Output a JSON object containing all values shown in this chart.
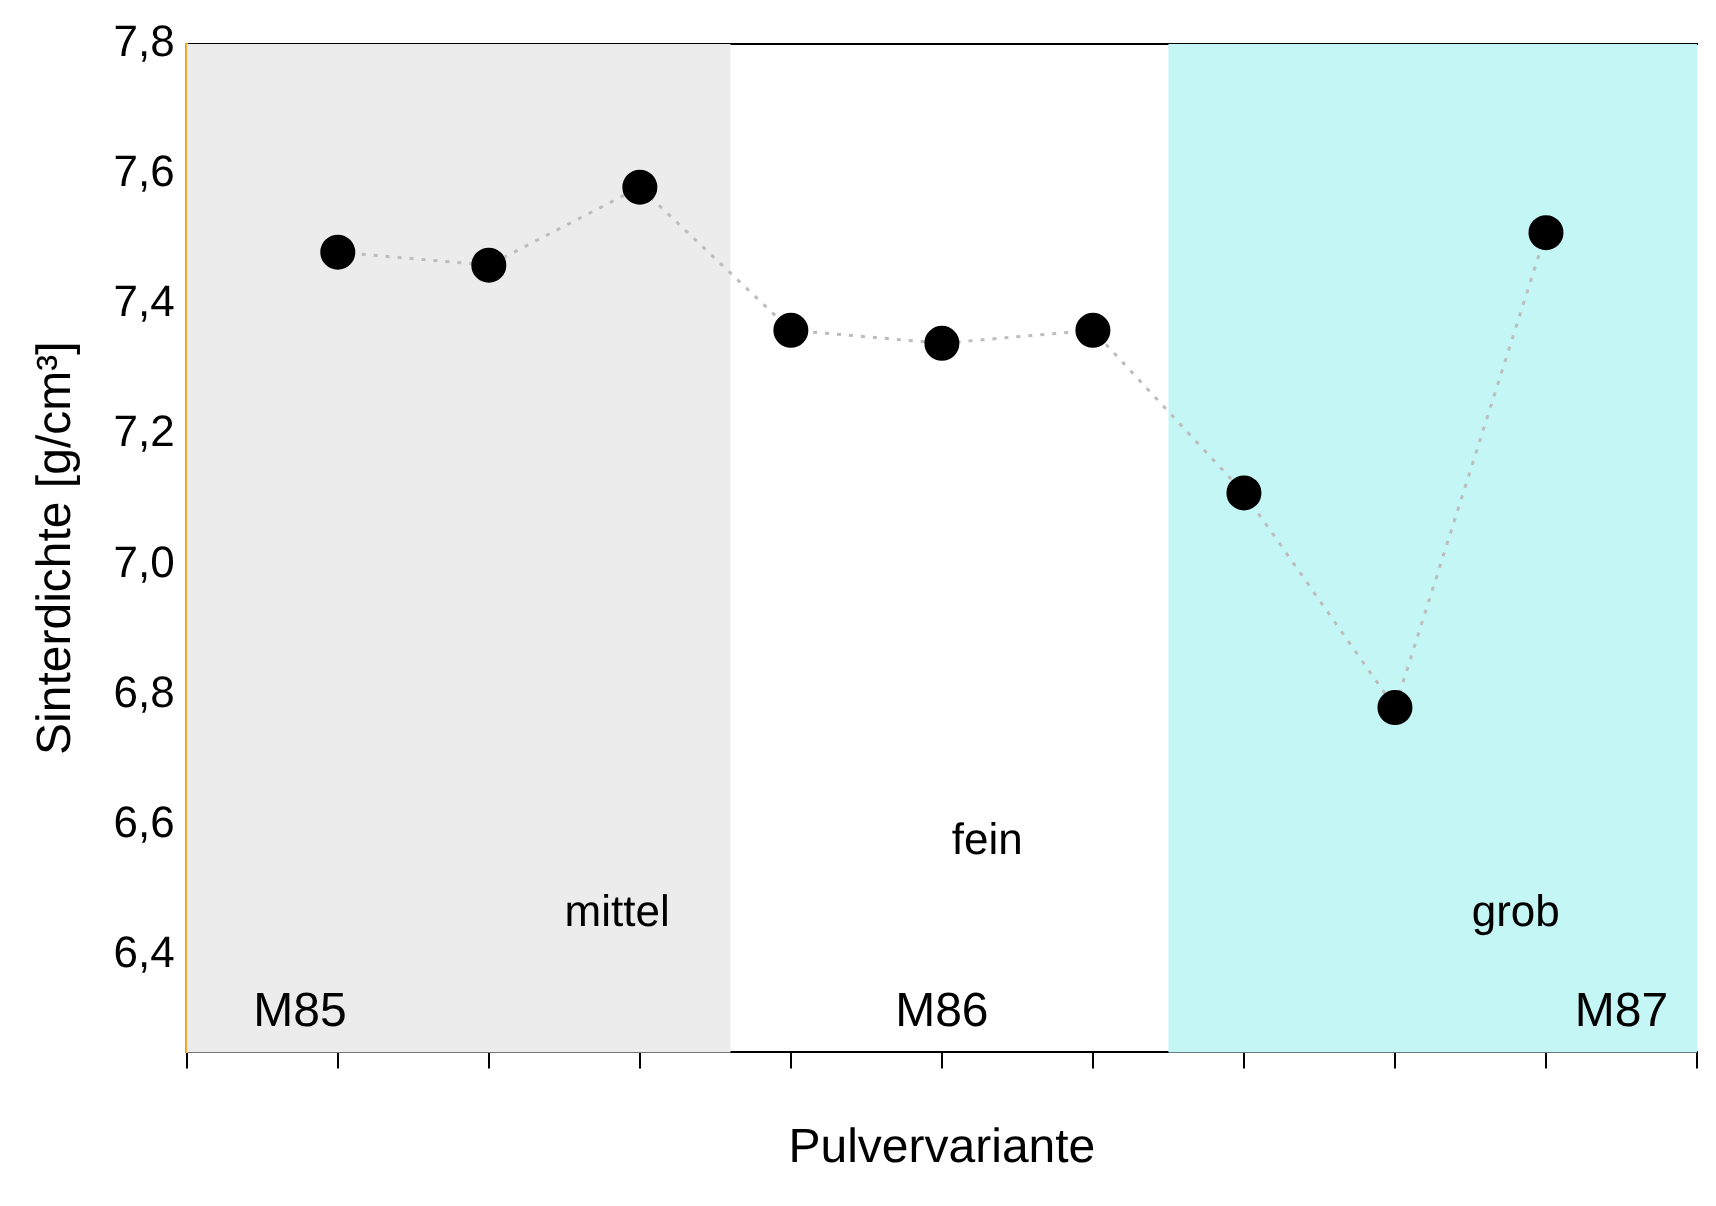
{
  "chart_data": {
    "type": "line",
    "xlabel": "Pulvervariante",
    "ylabel": "Sinterdichte [g/cm³]",
    "categories": [
      null,
      null,
      null,
      null,
      null,
      null,
      null,
      null,
      null,
      null,
      null
    ],
    "series": [
      {
        "color": "#000000",
        "values": [
          null,
          7.48,
          7.46,
          7.58,
          7.36,
          7.34,
          7.36,
          7.11,
          6.78,
          7.51,
          null
        ]
      }
    ],
    "ylim": [
      6.25,
      7.8
    ],
    "yticks": [
      {
        "value": 6.4,
        "label": "6,4"
      },
      {
        "value": 6.6,
        "label": "6,6"
      },
      {
        "value": 6.8,
        "label": "6,8"
      },
      {
        "value": 7.0,
        "label": "7,0"
      },
      {
        "value": 7.2,
        "label": "7,2"
      },
      {
        "value": 7.4,
        "label": "7,4"
      },
      {
        "value": 7.6,
        "label": "7,6"
      },
      {
        "value": 7.8,
        "label": "7,8"
      }
    ],
    "tick_labels": "y",
    "grid": false,
    "legend": false,
    "marker": "circle",
    "line_style": "dotted",
    "annotations": [
      "mittel",
      "fein",
      "grob",
      "M85",
      "M86",
      "M87"
    ]
  }
}
